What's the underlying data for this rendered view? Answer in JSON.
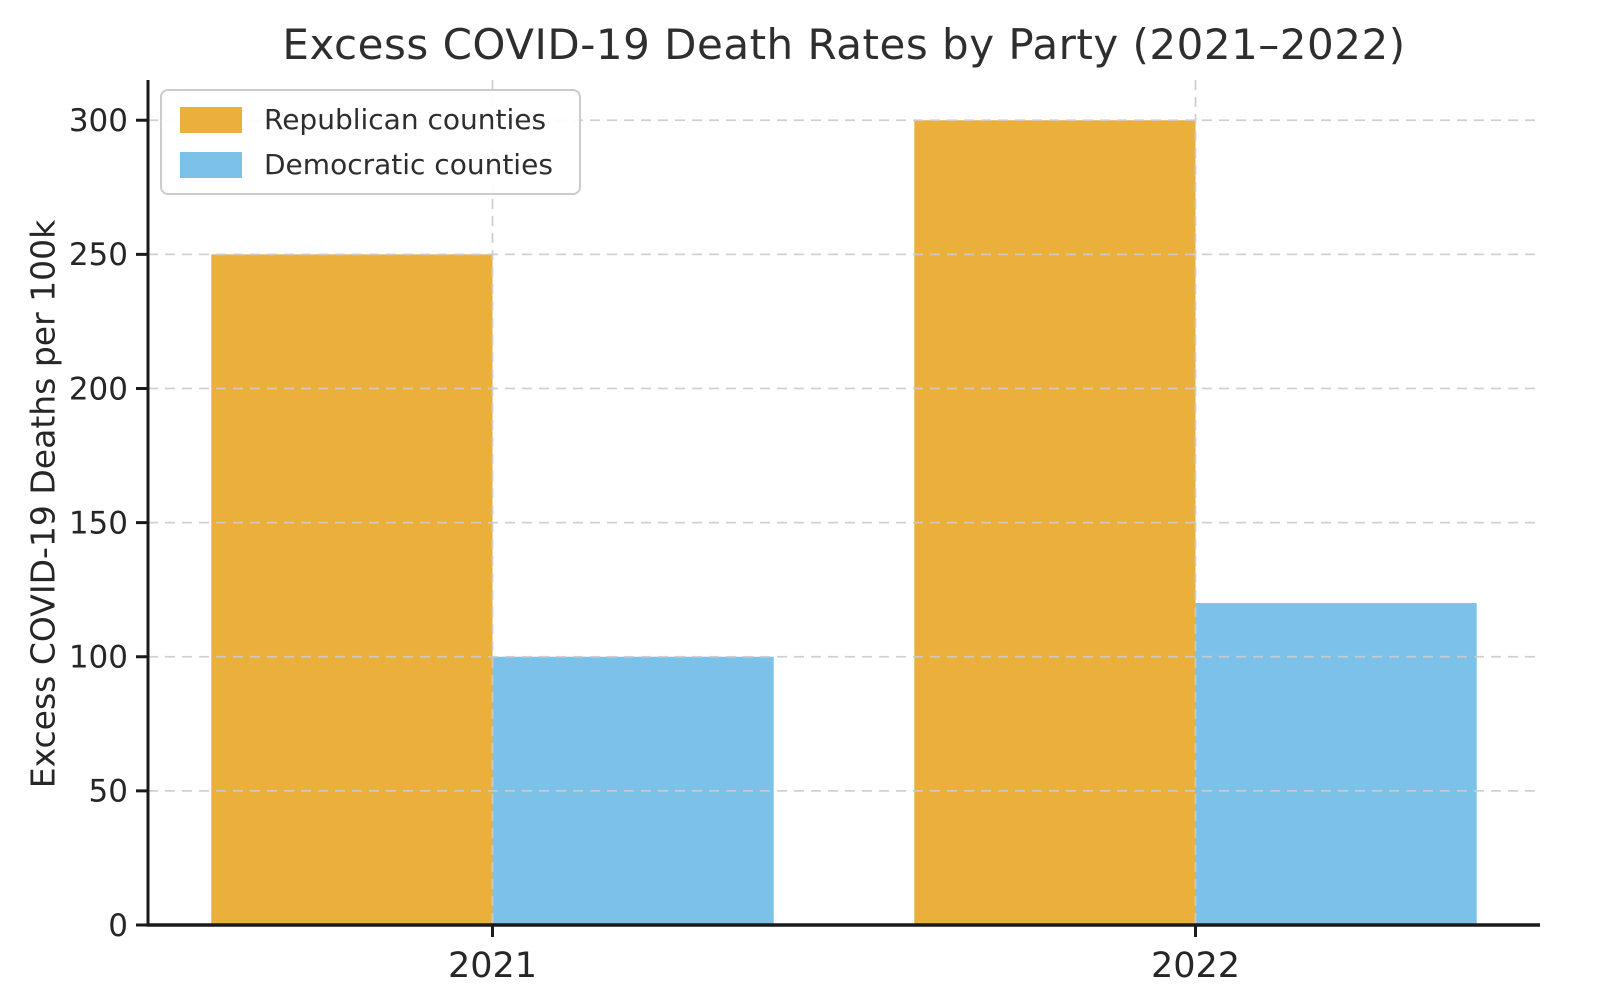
{
  "chart_data": {
    "type": "bar",
    "title": "Excess COVID-19 Death Rates by Party (2021–2022)",
    "xlabel": "",
    "ylabel": "Excess COVID-19 Deaths per 100k",
    "categories": [
      "2021",
      "2022"
    ],
    "series": [
      {
        "name": "Republican counties",
        "color": "#EAB03B",
        "values": [
          250,
          300
        ]
      },
      {
        "name": "Democratic counties",
        "color": "#7CC1E8",
        "values": [
          100,
          120
        ]
      }
    ],
    "y_ticks": [
      0,
      50,
      100,
      150,
      200,
      250,
      300
    ],
    "ylim": [
      0,
      315
    ],
    "bar_width_frac": 0.4,
    "grid": true,
    "grid_style": "dashed",
    "legend_position": "upper left",
    "colors": {
      "text": "#262626",
      "spine": "#1a1a1a",
      "grid": "#cccccc",
      "legend_border": "#cccccc",
      "background": "#ffffff"
    }
  }
}
